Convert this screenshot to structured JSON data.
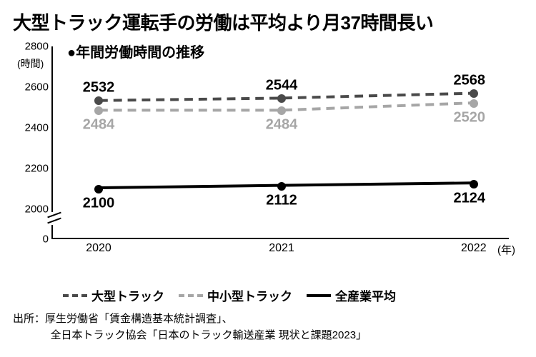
{
  "title": "大型トラック運転手の労働は平均より月37時間長い",
  "subtitle_marker": "●",
  "subtitle": "年間労働時間の推移",
  "chart": {
    "type": "line",
    "y_unit": "(時間)",
    "x_unit": "(年)",
    "y_ticks": [
      0,
      2000,
      2200,
      2400,
      2600,
      2800
    ],
    "y_break_between": [
      0,
      2000
    ],
    "x_categories": [
      "2020",
      "2021",
      "2022"
    ],
    "series": [
      {
        "key": "large_truck",
        "label": "大型トラック",
        "values": [
          2532,
          2544,
          2568
        ],
        "line_color": "#4a4a4a",
        "line_style": "dashed",
        "line_width": 4,
        "marker_color": "#4a4a4a",
        "label_color": "#000000",
        "label_pos": "above"
      },
      {
        "key": "mid_small_truck",
        "label": "中小型トラック",
        "values": [
          2484,
          2484,
          2520
        ],
        "line_color": "#a6a6a6",
        "line_style": "dashed",
        "line_width": 4,
        "marker_color": "#a6a6a6",
        "label_color": "#a6a6a6",
        "label_pos": "below"
      },
      {
        "key": "all_industry",
        "label": "全産業平均",
        "values": [
          2100,
          2112,
          2124
        ],
        "line_color": "#000000",
        "line_style": "solid",
        "line_width": 4,
        "marker_color": "#000000",
        "label_color": "#000000",
        "label_pos": "below"
      }
    ],
    "marker_size": 12,
    "value_label_fontsize": 20,
    "tick_fontsize": 15,
    "background_color": "#ffffff"
  },
  "legend_prefix_dash": "--",
  "legend_prefix_solid": "—",
  "source_label": "出所：",
  "source_line1": "厚生労働省「賃金構造基本統計調査」、",
  "source_line2": "全日本トラック協会「日本のトラック輸送産業 現状と課題2023」"
}
